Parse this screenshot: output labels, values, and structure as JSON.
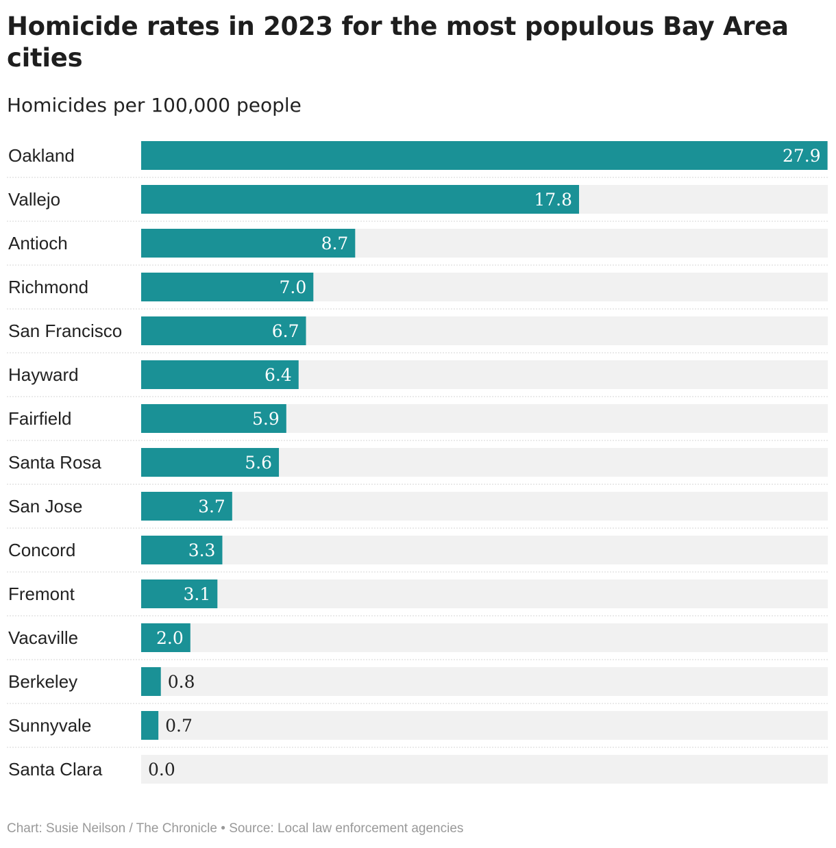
{
  "title": "Homicide rates in 2023 for the  most populous Bay Area cities",
  "subtitle": "Homicides per 100,000 people",
  "footer": {
    "chart_credit": "Chart: Susie Neilson / The Chronicle",
    "separator": "•",
    "source": "Source: Local law enforcement agencies"
  },
  "colors": {
    "bar": "#1a9196",
    "track": "#f1f1f1",
    "label_inside": "#ffffff",
    "label_outside": "#222222",
    "divider": "#d6d6d6"
  },
  "chart_data": {
    "type": "bar",
    "orientation": "horizontal",
    "title": "Homicide rates in 2023 for the  most populous Bay Area cities",
    "subtitle": "Homicides per 100,000 people",
    "categories": [
      "Oakland",
      "Vallejo",
      "Antioch",
      "Richmond",
      "San Francisco",
      "Hayward",
      "Fairfield",
      "Santa Rosa",
      "San Jose",
      "Concord",
      "Fremont",
      "Vacaville",
      "Berkeley",
      "Sunnyvale",
      "Santa Clara"
    ],
    "values": [
      27.9,
      17.8,
      8.7,
      7.0,
      6.7,
      6.4,
      5.9,
      5.6,
      3.7,
      3.3,
      3.1,
      2.0,
      0.8,
      0.7,
      0.0
    ],
    "value_labels": [
      "27.9",
      "17.8",
      "8.7",
      "7.0",
      "6.7",
      "6.4",
      "5.9",
      "5.6",
      "3.7",
      "3.3",
      "3.1",
      "2.0",
      "0.8",
      "0.7",
      "0.0"
    ],
    "xlim": [
      0,
      30
    ],
    "grid": false,
    "legend": "none"
  }
}
